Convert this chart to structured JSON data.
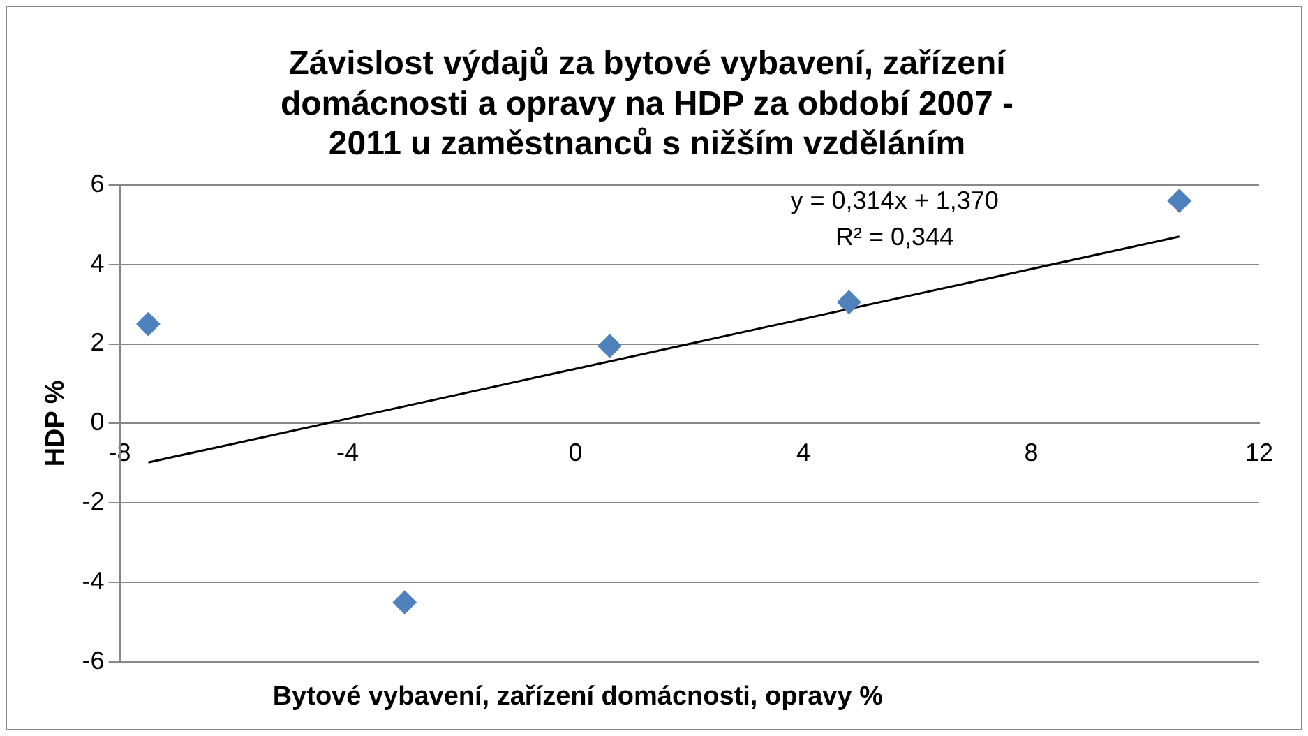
{
  "chart_data": {
    "type": "scatter",
    "title": "Závislost výdajů za bytové vybavení, zařízení domácnosti a opravy na HDP za období 2007 - 2011 u zaměstnanců s nižším vzděláním",
    "xlabel": "Bytové vybavení, zařízení domácnosti, opravy %",
    "ylabel": "HDP %",
    "series": [
      {
        "color": "#4f81bd",
        "marker": "diamond",
        "x": [
          -7.5,
          -3.0,
          0.6,
          4.8,
          10.6
        ],
        "values": [
          2.5,
          -4.5,
          1.95,
          3.05,
          5.6
        ]
      },
      {
        "type": "line",
        "color": "#000000",
        "marker": "none",
        "x": [
          -7.5,
          10.6
        ],
        "values": [
          -0.98,
          4.7
        ]
      }
    ],
    "xlim": [
      -8,
      12
    ],
    "xticks": [
      -8,
      -4,
      0,
      4,
      8,
      12
    ],
    "ylim": [
      -6,
      6
    ],
    "yticks": [
      -6,
      -4,
      -2,
      0,
      2,
      4,
      6
    ],
    "grid": "y",
    "legend": false,
    "annotations": [
      "y = 0,314x + 1,370",
      "R² = 0,344"
    ]
  }
}
